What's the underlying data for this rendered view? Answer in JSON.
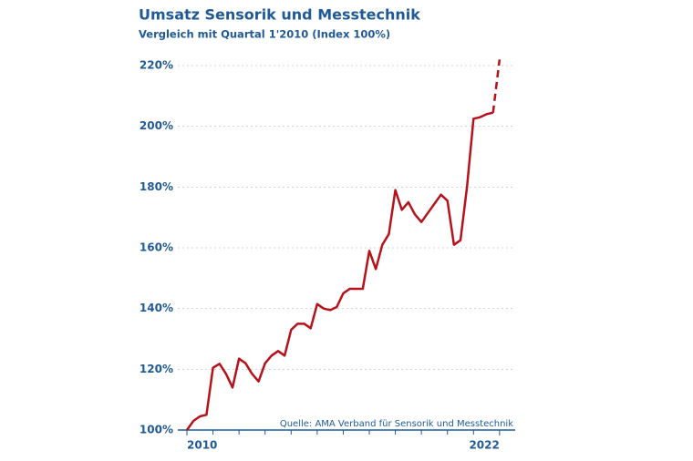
{
  "chart_data": {
    "type": "line",
    "title": "Umsatz Sensorik und Messtechnik",
    "subtitle": "Vergleich mit Quartal 1'2010 (Index 100%)",
    "source": "Quelle: AMA Verband für Sensorik und Messtechnik",
    "color": "#b5121b",
    "dashed_last_segment": true,
    "x": [
      2010,
      2010.25,
      2010.5,
      2010.75,
      2011,
      2011.25,
      2011.5,
      2011.75,
      2012,
      2012.25,
      2012.5,
      2012.75,
      2013,
      2013.25,
      2013.5,
      2013.75,
      2014,
      2014.25,
      2014.5,
      2014.75,
      2015,
      2015.25,
      2015.5,
      2015.75,
      2016,
      2016.25,
      2016.5,
      2016.75,
      2017,
      2017.25,
      2017.5,
      2017.75,
      2018,
      2018.25,
      2018.5,
      2018.75,
      2019,
      2019.25,
      2019.5,
      2019.75,
      2020,
      2020.25,
      2020.5,
      2020.75,
      2021,
      2021.25,
      2021.5,
      2021.75,
      2022
    ],
    "values": [
      100,
      103,
      104.5,
      105,
      120.5,
      121.8,
      118.5,
      114,
      123.5,
      122,
      118.5,
      116,
      122,
      124.5,
      126,
      124.5,
      133,
      135,
      135,
      133.5,
      141.5,
      140,
      139.5,
      140.5,
      145,
      146.5,
      146.5,
      146.5,
      159,
      153,
      161,
      164.5,
      179,
      172.5,
      175,
      171,
      168.5,
      171.5,
      174.5,
      177.5,
      175.5,
      161,
      162.5,
      180,
      202.5,
      203,
      204,
      204.5,
      222
    ],
    "xlim": [
      2009.65,
      2022.6
    ],
    "xticks": [
      2010,
      2022
    ],
    "x_minor_ticks": [
      2011,
      2012,
      2013,
      2014,
      2015,
      2016,
      2017,
      2018,
      2019,
      2020,
      2021
    ],
    "ylim": [
      100,
      232
    ],
    "yticks": [
      {
        "value": 100,
        "label": "100%"
      },
      {
        "value": 120,
        "label": "120%"
      },
      {
        "value": 140,
        "label": "140%"
      },
      {
        "value": 160,
        "label": "160%"
      },
      {
        "value": 180,
        "label": "180%"
      },
      {
        "value": 200,
        "label": "200%"
      },
      {
        "value": 220,
        "label": "220%"
      }
    ],
    "grid": true
  }
}
